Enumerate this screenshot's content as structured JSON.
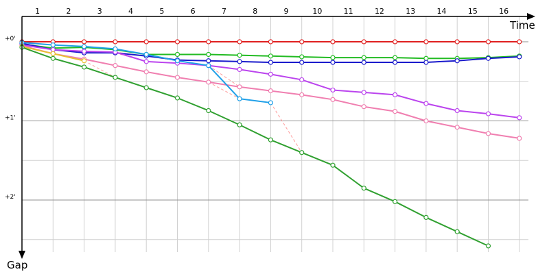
{
  "chart_data": {
    "type": "line",
    "title": "",
    "xlabel": "Time",
    "ylabel": "Gap",
    "x_ticks": [
      "1",
      "2",
      "3",
      "4",
      "5",
      "6",
      "7",
      "8",
      "9",
      "10",
      "11",
      "12",
      "13",
      "14",
      "15",
      "16"
    ],
    "y_ticks": [
      "+0'",
      "+1'",
      "+2'"
    ],
    "xlim": [
      0.5,
      17
    ],
    "ylim": [
      0,
      2.6
    ],
    "y_inverted": true,
    "grid": true,
    "series": [
      {
        "color": "#e02020",
        "marker": "open-circle",
        "points": [
          [
            0.5,
            0
          ],
          [
            1.5,
            0
          ],
          [
            2.5,
            0
          ],
          [
            3.5,
            0
          ],
          [
            4.5,
            0
          ],
          [
            5.5,
            0
          ],
          [
            6.5,
            0
          ],
          [
            7.5,
            0
          ],
          [
            8.5,
            0
          ],
          [
            9.5,
            0
          ],
          [
            10.5,
            0
          ],
          [
            11.5,
            0
          ],
          [
            12.5,
            0
          ],
          [
            13.5,
            0
          ],
          [
            14.5,
            0
          ],
          [
            15.5,
            0
          ],
          [
            16.5,
            0
          ]
        ]
      },
      {
        "color": "#22bb22",
        "marker": "open-circle",
        "points": [
          [
            0.5,
            0.03
          ],
          [
            1.5,
            0.08
          ],
          [
            2.5,
            0.07
          ],
          [
            3.5,
            0.1
          ],
          [
            4.5,
            0.16
          ],
          [
            5.5,
            0.16
          ],
          [
            6.5,
            0.16
          ],
          [
            7.5,
            0.17
          ],
          [
            8.5,
            0.18
          ],
          [
            9.5,
            0.19
          ],
          [
            10.5,
            0.2
          ],
          [
            11.5,
            0.2
          ],
          [
            12.5,
            0.2
          ],
          [
            13.5,
            0.21
          ],
          [
            14.5,
            0.21
          ],
          [
            15.5,
            0.2
          ],
          [
            16.5,
            0.18
          ]
        ]
      },
      {
        "color": "#1a1acc",
        "marker": "open-circle",
        "points": [
          [
            0.5,
            0.02
          ],
          [
            1.5,
            0.1
          ],
          [
            2.5,
            0.14
          ],
          [
            3.5,
            0.14
          ],
          [
            4.5,
            0.18
          ],
          [
            5.5,
            0.23
          ],
          [
            6.5,
            0.24
          ],
          [
            7.5,
            0.25
          ],
          [
            8.5,
            0.26
          ],
          [
            9.5,
            0.26
          ],
          [
            10.5,
            0.26
          ],
          [
            11.5,
            0.26
          ],
          [
            12.5,
            0.26
          ],
          [
            13.5,
            0.26
          ],
          [
            14.5,
            0.24
          ],
          [
            15.5,
            0.21
          ],
          [
            16.5,
            0.19
          ]
        ]
      },
      {
        "color": "#bb44ee",
        "marker": "open-circle",
        "points": [
          [
            0.5,
            0.04
          ],
          [
            1.5,
            0.1
          ],
          [
            2.5,
            0.12
          ],
          [
            3.5,
            0.13
          ],
          [
            4.5,
            0.25
          ],
          [
            5.5,
            0.27
          ],
          [
            6.5,
            0.3
          ],
          [
            7.5,
            0.35
          ],
          [
            8.5,
            0.41
          ],
          [
            9.5,
            0.48
          ],
          [
            10.5,
            0.61
          ],
          [
            11.5,
            0.64
          ],
          [
            12.5,
            0.67
          ],
          [
            13.5,
            0.78
          ],
          [
            14.5,
            0.87
          ],
          [
            15.5,
            0.91
          ],
          [
            16.5,
            0.96
          ]
        ]
      },
      {
        "color": "#f07fb0",
        "marker": "open-circle",
        "points": [
          [
            0.5,
            0.05
          ],
          [
            1.5,
            0.15
          ],
          [
            2.5,
            0.22
          ],
          [
            3.5,
            0.3
          ],
          [
            4.5,
            0.38
          ],
          [
            5.5,
            0.45
          ],
          [
            6.5,
            0.51
          ],
          [
            7.5,
            0.57
          ],
          [
            8.5,
            0.62
          ],
          [
            9.5,
            0.67
          ],
          [
            10.5,
            0.73
          ],
          [
            11.5,
            0.82
          ],
          [
            12.5,
            0.88
          ],
          [
            13.5,
            1.0
          ],
          [
            14.5,
            1.08
          ],
          [
            15.5,
            1.16
          ],
          [
            16.5,
            1.22
          ]
        ]
      },
      {
        "color": "#20a0e8",
        "marker": "open-circle",
        "points": [
          [
            0.5,
            0.01
          ],
          [
            1.5,
            0.04
          ],
          [
            2.5,
            0.06
          ],
          [
            3.5,
            0.09
          ],
          [
            4.5,
            0.16
          ],
          [
            5.5,
            0.24
          ],
          [
            6.5,
            0.3
          ],
          [
            7.5,
            0.72
          ],
          [
            8.5,
            0.77
          ]
        ]
      },
      {
        "color": "#e8c030",
        "marker": "open-circle",
        "points": [
          [
            0.5,
            0.06
          ],
          [
            1.5,
            0.15
          ],
          [
            2.5,
            0.24
          ]
        ]
      },
      {
        "color": "#30a030",
        "marker": "open-circle",
        "points": [
          [
            0.5,
            0.07
          ],
          [
            1.5,
            0.21
          ],
          [
            2.5,
            0.32
          ],
          [
            3.5,
            0.45
          ],
          [
            4.5,
            0.58
          ],
          [
            5.5,
            0.71
          ],
          [
            6.5,
            0.87
          ],
          [
            7.5,
            1.05
          ],
          [
            8.5,
            1.24
          ],
          [
            9.5,
            1.4
          ],
          [
            10.5,
            1.56
          ],
          [
            11.5,
            1.85
          ],
          [
            12.5,
            2.02
          ],
          [
            13.5,
            2.22
          ],
          [
            14.5,
            2.4
          ],
          [
            15.5,
            2.58
          ]
        ]
      }
    ],
    "dashed_connectors": {
      "color": "#ff9a9a",
      "style": "dashed"
    }
  }
}
